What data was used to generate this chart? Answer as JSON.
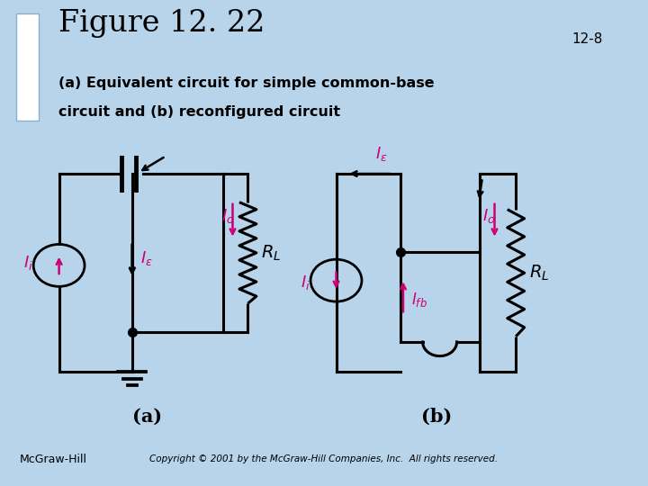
{
  "title": "Figure 12. 22",
  "page_num": "12-8",
  "subtitle_line1": "(a) Equivalent circuit for simple common-base",
  "subtitle_line2": "circuit and (b) reconfigured circuit",
  "bg_color": "#b8d4ea",
  "panel_bg": "#f5f5f5",
  "title_color": "#000000",
  "label_color": "#cc0077",
  "black": "#000000",
  "footer_text_left": "McGraw-Hill",
  "footer_text_right": "Copyright © 2001 by the McGraw-Hill Companies, Inc.  All rights reserved.",
  "label_a": "(a)",
  "label_b": "(b)"
}
